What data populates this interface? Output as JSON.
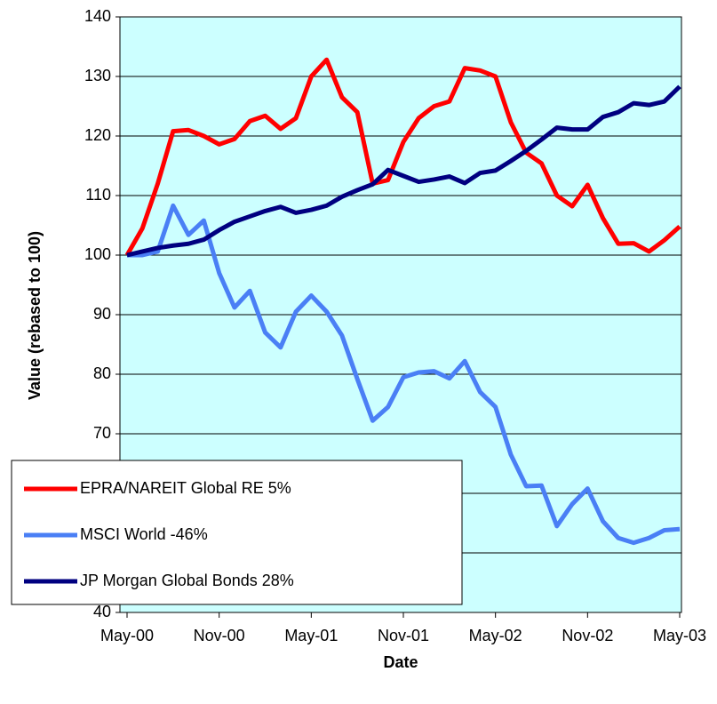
{
  "chart_data": {
    "type": "line",
    "xlabel": "Date",
    "ylabel": "Value (rebased to 100)",
    "categories": [
      "May-00",
      null,
      null,
      null,
      null,
      null,
      "Nov-00",
      null,
      null,
      null,
      null,
      null,
      "May-01",
      null,
      null,
      null,
      null,
      null,
      "Nov-01",
      null,
      null,
      null,
      null,
      null,
      "May-02",
      null,
      null,
      null,
      null,
      null,
      "Nov-02",
      null,
      null,
      null,
      null,
      null,
      "May-03"
    ],
    "series": [
      {
        "name": "EPRA/NAREIT Global RE 5%",
        "color": "#ff0000",
        "values": [
          100,
          104.5,
          112,
          120.8,
          121,
          120,
          118.6,
          119.5,
          122.5,
          123.4,
          121.2,
          123,
          130,
          132.8,
          126.5,
          124,
          112,
          112.6,
          119,
          123,
          125,
          125.8,
          131.4,
          131,
          130,
          122.3,
          117.2,
          115.4,
          110,
          108.2,
          111.8,
          106.2,
          101.9,
          102,
          100.6,
          102.5,
          104.8
        ]
      },
      {
        "name": "MSCI World -46%",
        "color": "#4a7ff5",
        "values": [
          100,
          100,
          100.6,
          108.3,
          103.4,
          105.8,
          97,
          91.2,
          94,
          87,
          84.5,
          90.5,
          93.2,
          90.5,
          86.5,
          79.2,
          72.2,
          74.5,
          79.5,
          80.3,
          80.5,
          79.3,
          82.2,
          77,
          74.5,
          66.5,
          61.2,
          61.3,
          54.5,
          58.2,
          60.8,
          55.3,
          52.5,
          51.7,
          52.5,
          53.8,
          54
        ]
      },
      {
        "name": "JP Morgan Global Bonds 28%",
        "color": "#000080",
        "values": [
          100,
          100.6,
          101.2,
          101.6,
          101.9,
          102.6,
          104.2,
          105.6,
          106.5,
          107.4,
          108.1,
          107.1,
          107.6,
          108.3,
          109.8,
          110.9,
          111.9,
          114.3,
          113.3,
          112.3,
          112.7,
          113.2,
          112.1,
          113.8,
          114.2,
          115.8,
          117.5,
          119.4,
          121.4,
          121.1,
          121.1,
          123.2,
          124,
          125.5,
          125.2,
          125.8,
          128.3
        ]
      }
    ],
    "ylim": [
      40,
      140
    ],
    "yticks": [
      40,
      50,
      60,
      70,
      80,
      90,
      100,
      110,
      120,
      130,
      140
    ],
    "grid": true
  }
}
